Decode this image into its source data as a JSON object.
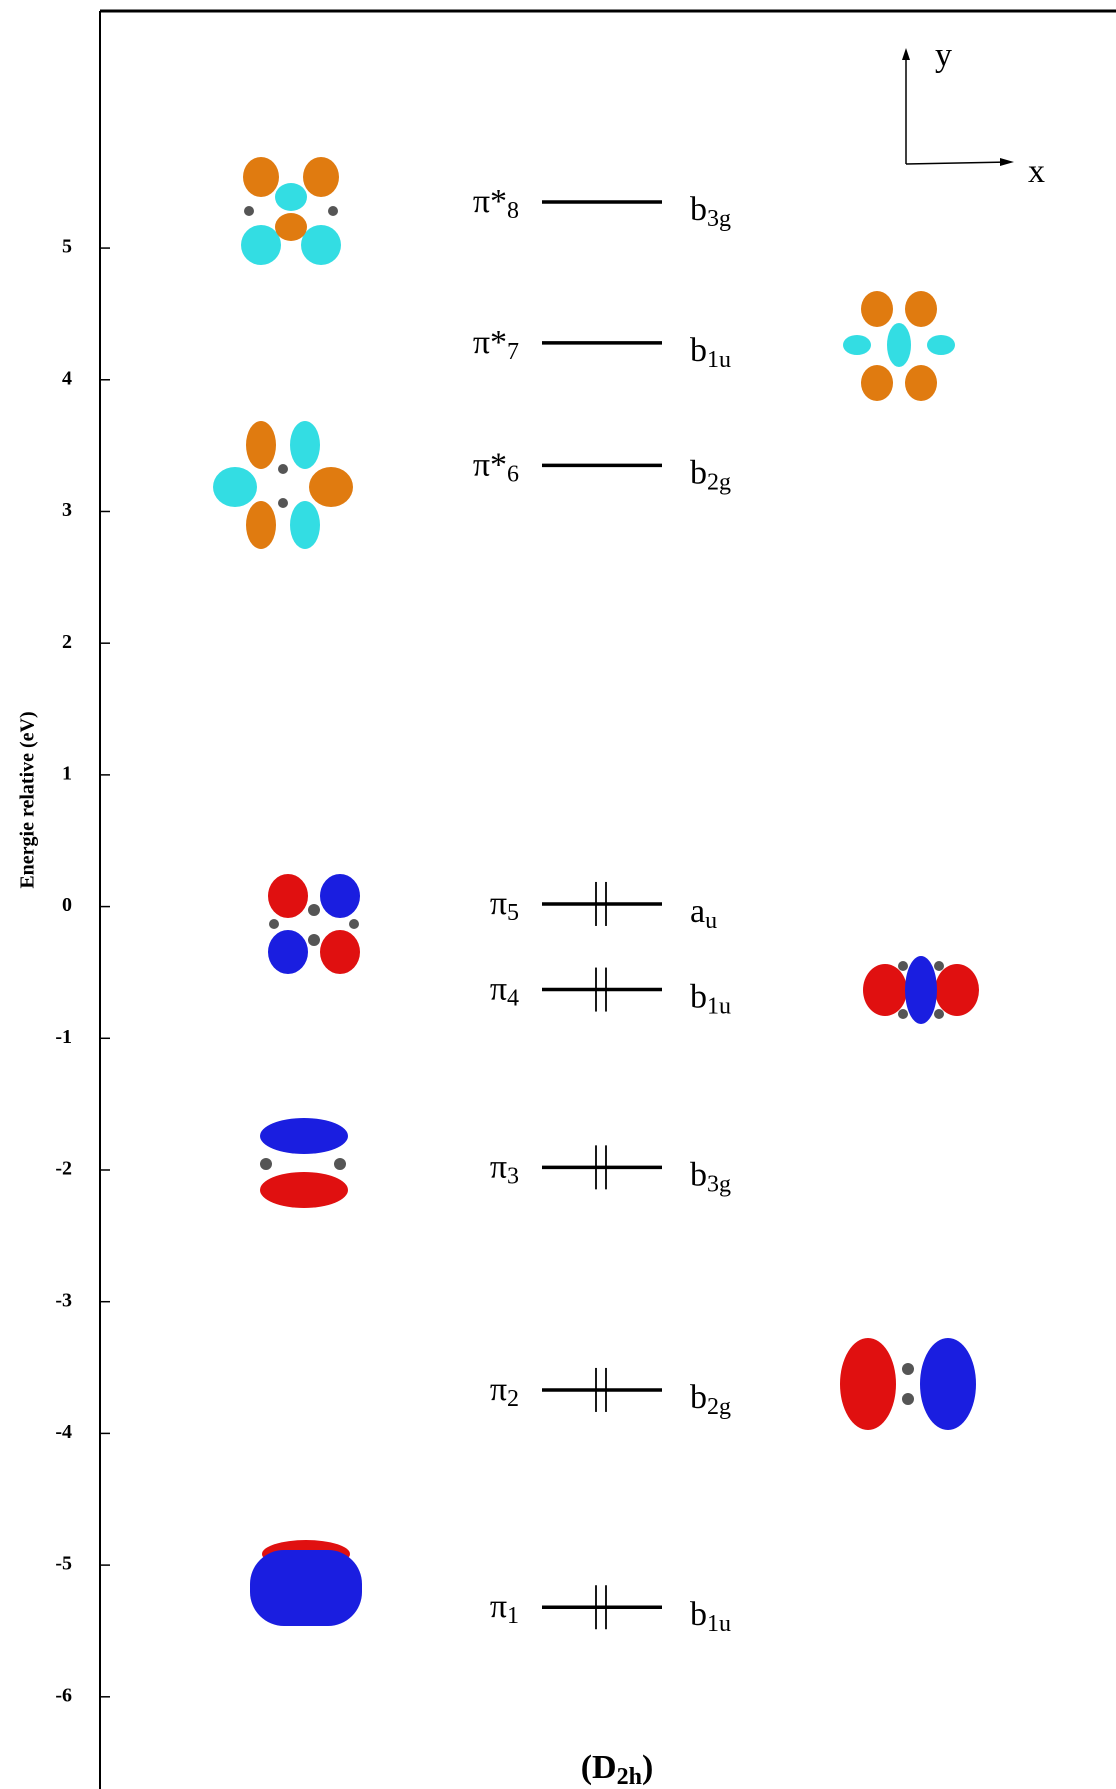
{
  "chart_data": {
    "type": "energy-levels",
    "y_label": "Energie relative (eV)",
    "ylim": [
      -6.7,
      6.8
    ],
    "yticks": [
      5,
      4,
      3,
      2,
      1,
      0,
      -1,
      -2,
      -3,
      -4,
      -5,
      -6
    ],
    "level_color": "#000000",
    "levels": [
      {
        "orbital": "π*",
        "index": "8",
        "symmetry": "b",
        "symmetry_sub": "3g",
        "value": 5.35,
        "electrons": 0
      },
      {
        "orbital": "π*",
        "index": "7",
        "symmetry": "b",
        "symmetry_sub": "1u",
        "value": 4.28,
        "electrons": 0
      },
      {
        "orbital": "π*",
        "index": "6",
        "symmetry": "b",
        "symmetry_sub": "2g",
        "value": 3.35,
        "electrons": 0
      },
      {
        "orbital": "π",
        "index": "5",
        "symmetry": "a",
        "symmetry_sub": "u",
        "value": 0.02,
        "electrons": 2
      },
      {
        "orbital": "π",
        "index": "4",
        "symmetry": "b",
        "symmetry_sub": "1u",
        "value": -0.63,
        "electrons": 2
      },
      {
        "orbital": "π",
        "index": "3",
        "symmetry": "b",
        "symmetry_sub": "3g",
        "value": -1.98,
        "electrons": 2
      },
      {
        "orbital": "π",
        "index": "2",
        "symmetry": "b",
        "symmetry_sub": "2g",
        "value": -3.67,
        "electrons": 2
      },
      {
        "orbital": "π",
        "index": "1",
        "symmetry": "b",
        "symmetry_sub": "1u",
        "value": -5.32,
        "electrons": 2
      }
    ],
    "group_label": {
      "main": "(D",
      "sub": "2h",
      "close": ")"
    },
    "axis_indicator": {
      "y": "y",
      "x": "x"
    }
  }
}
